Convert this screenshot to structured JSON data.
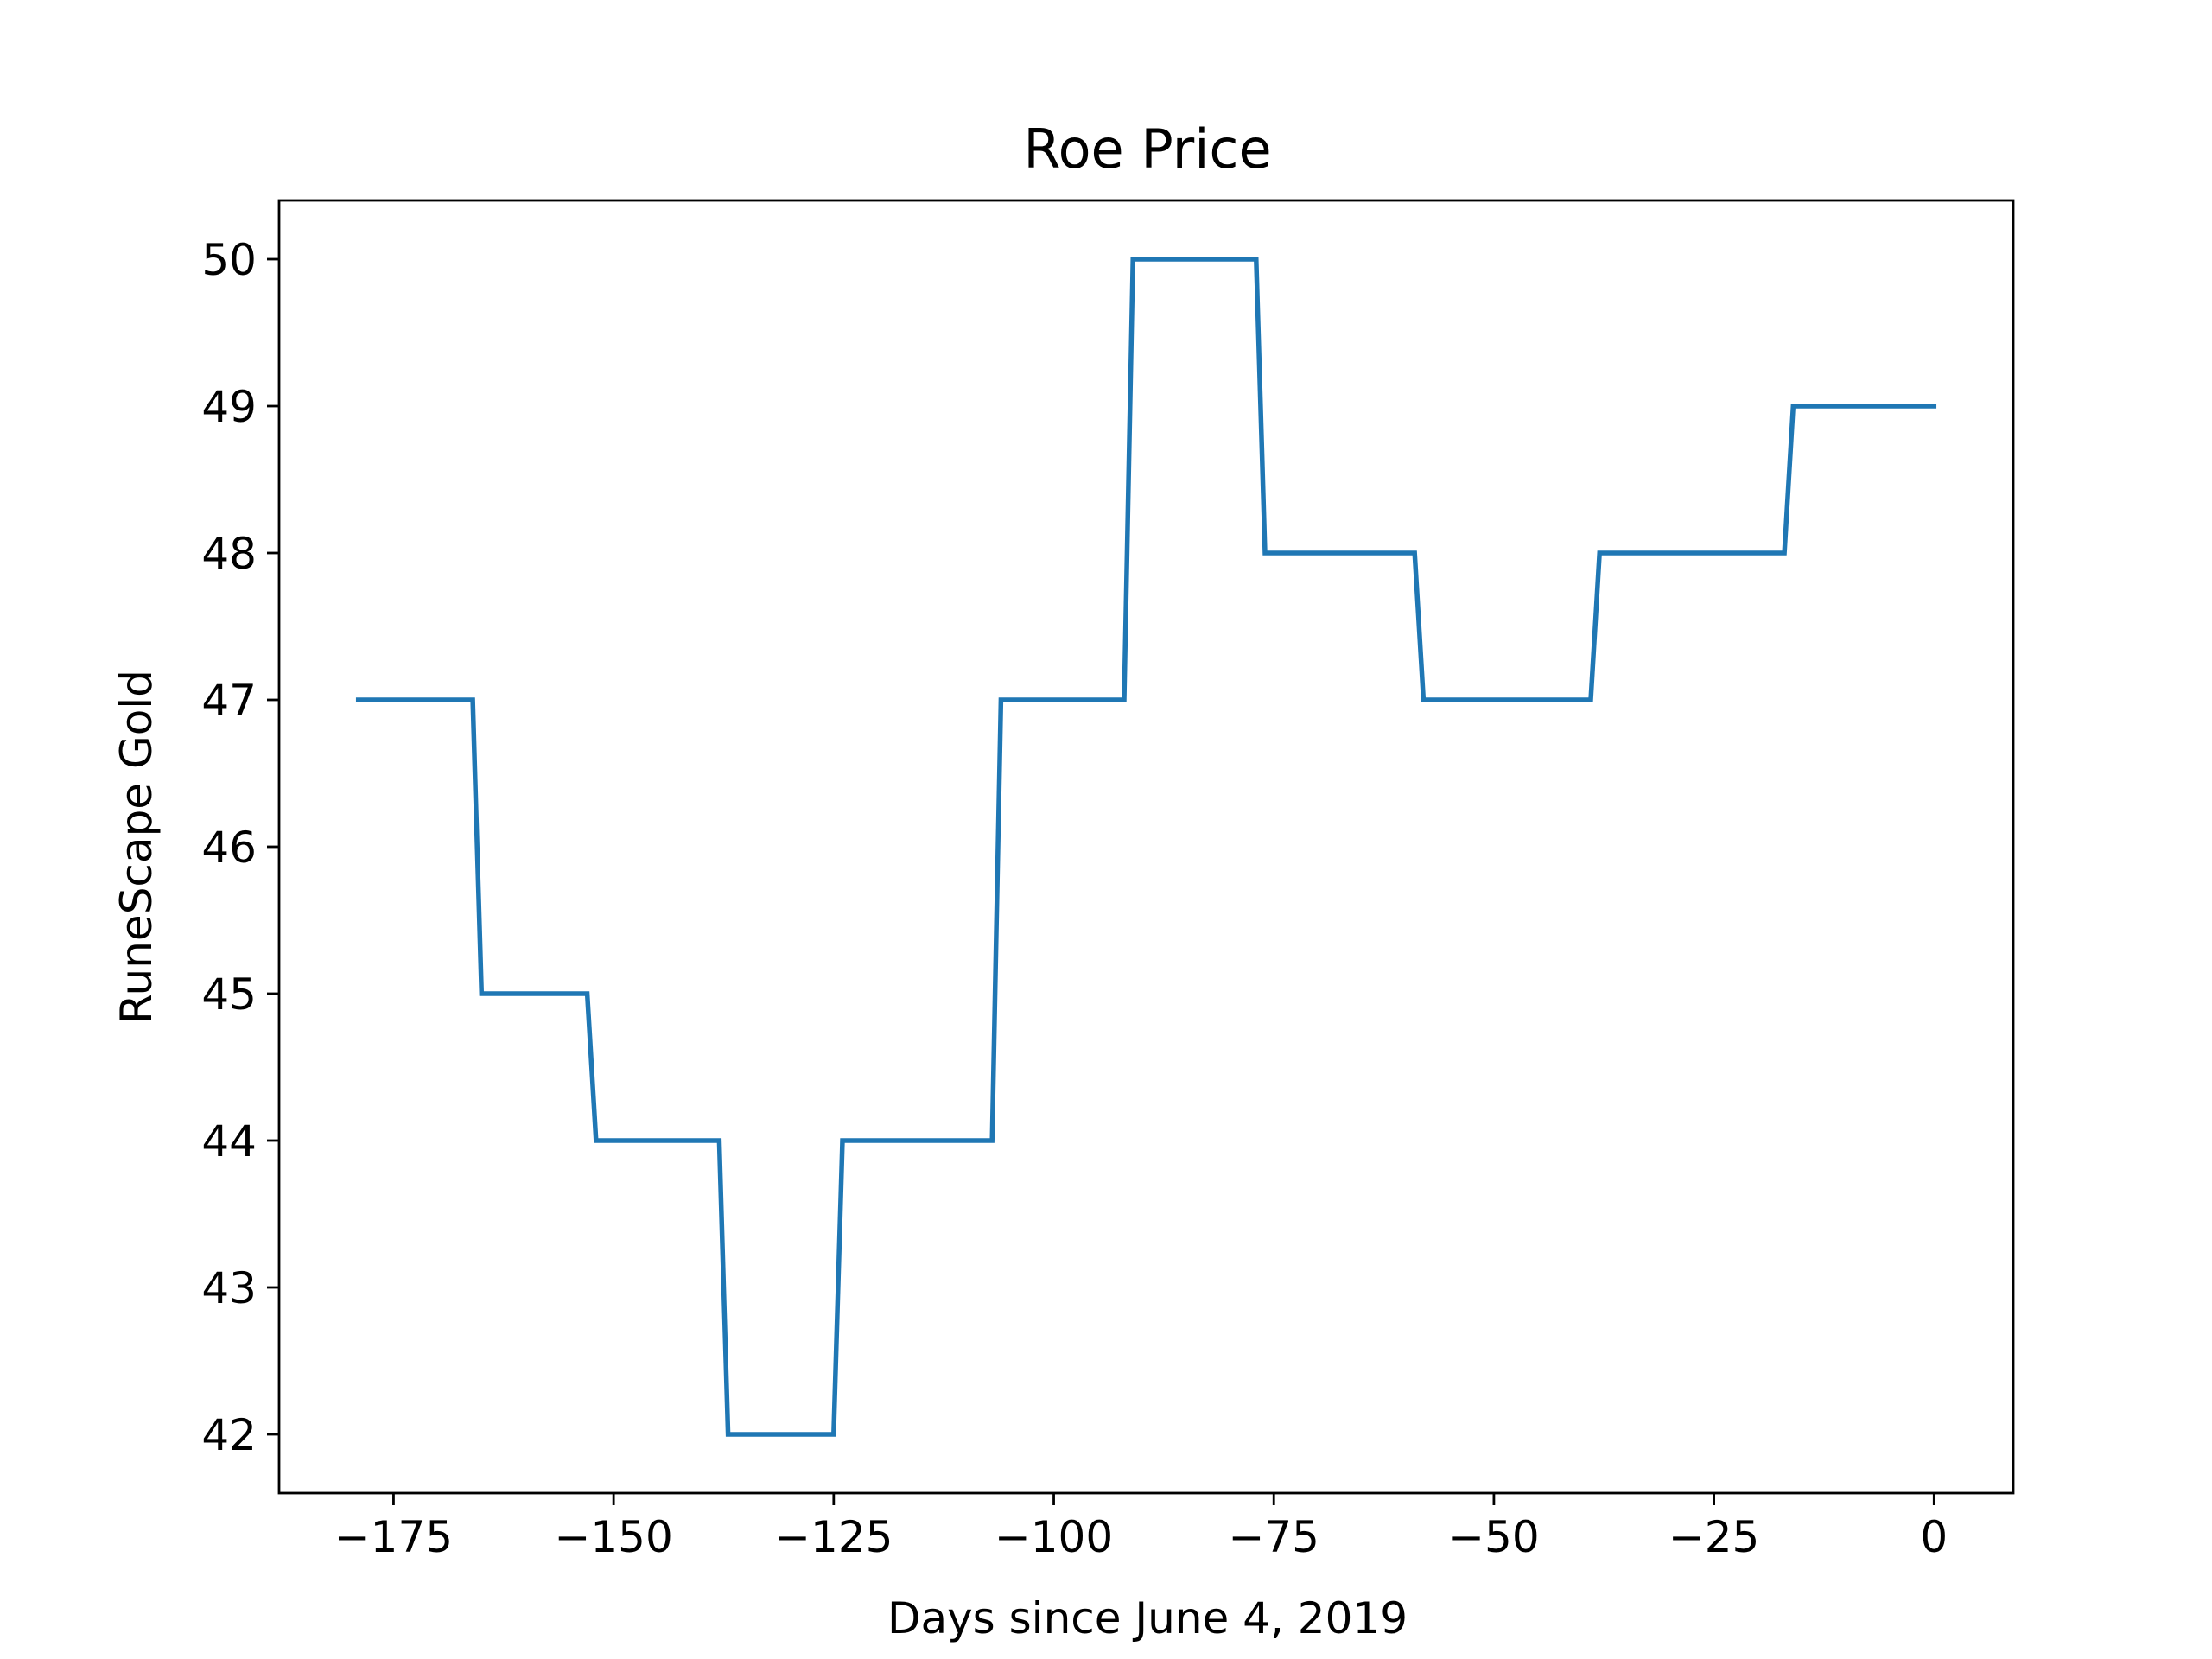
{
  "chart_data": {
    "type": "line",
    "step": true,
    "title": "Roe Price",
    "xlabel": "Days since June 4, 2019",
    "ylabel": "RuneScape Gold",
    "xlim": [
      -188,
      9
    ],
    "ylim": [
      41.6,
      50.4
    ],
    "xticks": [
      -175,
      -150,
      -125,
      -100,
      -75,
      -50,
      -25,
      0
    ],
    "xtick_labels": [
      "−175",
      "−150",
      "−125",
      "−100",
      "−75",
      "−50",
      "−25",
      "0"
    ],
    "yticks": [
      42,
      43,
      44,
      45,
      46,
      47,
      48,
      49,
      50
    ],
    "ytick_labels": [
      "42",
      "43",
      "44",
      "45",
      "46",
      "47",
      "48",
      "49",
      "50"
    ],
    "grid": false,
    "legend": "none",
    "line_color": "#1f77b4",
    "series": [
      {
        "x": [
          -179,
          -166,
          -165,
          -153,
          -152,
          -138,
          -137,
          -125,
          -124,
          -107,
          -106,
          -92,
          -91,
          -77,
          -76,
          -59,
          -58,
          -39,
          -38,
          -17,
          -16,
          0
        ],
        "y": [
          47,
          47,
          45,
          45,
          44,
          44,
          42,
          42,
          44,
          44,
          47,
          47,
          50,
          50,
          48,
          48,
          47,
          47,
          48,
          48,
          49,
          49
        ]
      }
    ]
  }
}
